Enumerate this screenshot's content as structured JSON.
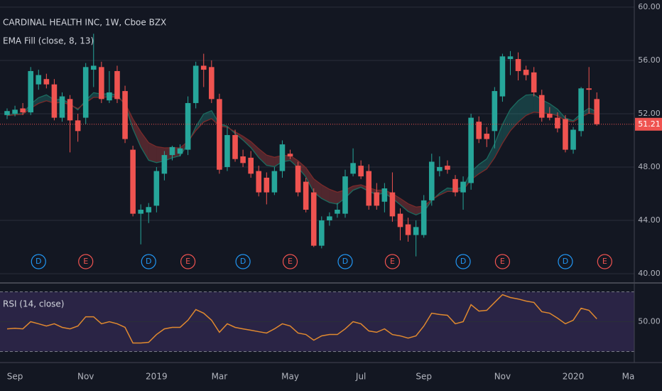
{
  "chart_data": [
    {
      "type": "candlestick",
      "title": "CARDINAL HEALTH INC, 1W, Cboe BZX",
      "categories": [
        null,
        "Sep",
        null,
        null,
        null,
        null,
        null,
        null,
        null,
        null,
        "Nov",
        null,
        null,
        null,
        null,
        null,
        null,
        null,
        null,
        "2019",
        null,
        null,
        null,
        null,
        null,
        null,
        null,
        "Mar",
        null,
        null,
        null,
        null,
        null,
        null,
        null,
        null,
        "May",
        null,
        null,
        null,
        null,
        null,
        null,
        null,
        null,
        "Jul",
        null,
        null,
        null,
        null,
        null,
        null,
        null,
        "Sep",
        null,
        null,
        null,
        null,
        null,
        null,
        null,
        null,
        null,
        "Nov",
        null,
        null,
        null,
        null,
        null,
        null,
        null,
        null,
        "2020",
        null,
        null,
        null,
        null,
        null,
        null,
        "Ma"
      ],
      "open": [
        51.9,
        52.0,
        52.4,
        52.1,
        54.2,
        54.6,
        54.2,
        51.7,
        53.1,
        51.5,
        51.7,
        55.3,
        55.5,
        53.0,
        55.2,
        53.7,
        49.3,
        44.5,
        44.6,
        45.1,
        47.5,
        48.9,
        49.0,
        49.3,
        52.8,
        55.6,
        55.5,
        53.1,
        48.0,
        50.4,
        48.8,
        48.7,
        47.7,
        47.2,
        46.1,
        47.7,
        49.0,
        48.1,
        46.9,
        46.1,
        42.1,
        44.0,
        44.5,
        44.5,
        47.5,
        48.1,
        47.7,
        46.1,
        45.4,
        46.1,
        44.5,
        43.7,
        42.9,
        42.9,
        45.5,
        47.7,
        48.1,
        47.1,
        46.1,
        46.8,
        51.4,
        50.5,
        50.7,
        53.3,
        56.1,
        56.1,
        55.3,
        55.1,
        53.4,
        52.0,
        51.7,
        51.6,
        49.3,
        50.7,
        53.9,
        53.1,
        null,
        null,
        null,
        null
      ],
      "high": [
        52.4,
        52.6,
        52.8,
        55.5,
        55.3,
        55.0,
        54.6,
        53.6,
        53.4,
        52.0,
        55.8,
        58.0,
        55.9,
        55.2,
        55.6,
        54.1,
        49.6,
        45.2,
        45.3,
        48.0,
        49.2,
        49.6,
        49.7,
        53.3,
        55.9,
        56.5,
        56.0,
        53.5,
        51.0,
        50.8,
        49.3,
        49.2,
        48.1,
        47.6,
        48.0,
        50.0,
        49.3,
        48.4,
        47.2,
        46.4,
        44.3,
        44.6,
        45.3,
        47.8,
        49.4,
        48.5,
        48.2,
        46.8,
        46.8,
        47.6,
        44.9,
        44.2,
        44.0,
        45.9,
        49.0,
        48.8,
        48.5,
        47.4,
        47.3,
        52.0,
        51.8,
        51.0,
        54.0,
        56.5,
        56.7,
        56.6,
        55.6,
        55.5,
        53.8,
        52.5,
        52.1,
        51.9,
        51.0,
        54.0,
        55.5,
        53.6,
        null,
        null,
        null,
        null
      ],
      "low": [
        51.6,
        51.8,
        51.9,
        51.9,
        53.8,
        53.9,
        51.5,
        51.4,
        49.1,
        49.9,
        51.2,
        54.0,
        52.8,
        52.8,
        52.8,
        49.8,
        44.3,
        42.2,
        43.8,
        44.6,
        47.0,
        48.5,
        48.8,
        48.9,
        52.4,
        54.0,
        52.8,
        47.5,
        47.7,
        48.4,
        48.0,
        47.2,
        45.8,
        45.2,
        45.9,
        47.2,
        48.6,
        45.8,
        44.6,
        42.0,
        41.9,
        43.6,
        44.2,
        44.2,
        47.3,
        47.1,
        44.8,
        44.8,
        44.6,
        43.9,
        42.5,
        42.4,
        41.3,
        42.7,
        45.1,
        47.3,
        47.5,
        45.8,
        44.8,
        46.3,
        49.8,
        49.5,
        49.4,
        52.9,
        54.9,
        54.5,
        54.5,
        53.3,
        51.4,
        51.5,
        50.6,
        49.1,
        49.0,
        50.3,
        52.0,
        51.1,
        null,
        null,
        null,
        null
      ],
      "close": [
        52.2,
        52.3,
        52.1,
        55.2,
        54.9,
        54.2,
        51.7,
        53.3,
        51.5,
        50.7,
        55.5,
        55.6,
        53.1,
        53.6,
        53.1,
        50.1,
        44.5,
        44.8,
        45.0,
        47.7,
        48.9,
        49.5,
        49.4,
        52.8,
        55.6,
        55.3,
        53.1,
        47.8,
        50.4,
        48.6,
        48.3,
        47.5,
        46.1,
        46.1,
        47.7,
        49.7,
        48.8,
        46.1,
        44.8,
        42.1,
        44.0,
        44.3,
        44.8,
        47.3,
        48.3,
        47.3,
        45.1,
        45.1,
        46.4,
        44.3,
        43.5,
        42.9,
        43.5,
        45.5,
        48.4,
        48.0,
        47.8,
        46.1,
        46.9,
        51.7,
        50.1,
        50.1,
        53.7,
        56.3,
        56.3,
        55.2,
        54.9,
        53.6,
        51.7,
        51.7,
        50.9,
        49.3,
        50.8,
        53.9,
        53.8,
        51.21,
        null,
        null,
        null,
        null
      ],
      "up_color": "#26a69a",
      "down_color": "#ef5350",
      "ylim": [
        39.36,
        60.53
      ],
      "yticks": [
        {
          "value": 40,
          "label": "40.00"
        },
        {
          "value": 44,
          "label": "44.00"
        },
        {
          "value": 48,
          "label": "48.00"
        },
        {
          "value": 52,
          "label": "52.00"
        },
        {
          "value": 56,
          "label": "56.00"
        },
        {
          "value": 60,
          "label": "60.00"
        }
      ],
      "grid": true,
      "last_price": 51.21,
      "events": [
        null,
        null,
        null,
        null,
        "D",
        null,
        null,
        null,
        null,
        null,
        "E",
        null,
        null,
        null,
        null,
        null,
        null,
        null,
        "D",
        null,
        null,
        null,
        null,
        "E",
        null,
        null,
        null,
        null,
        null,
        null,
        "D",
        null,
        null,
        null,
        null,
        null,
        "E",
        null,
        null,
        null,
        null,
        null,
        null,
        "D",
        null,
        null,
        null,
        null,
        null,
        "E",
        null,
        null,
        null,
        null,
        null,
        null,
        null,
        null,
        "D",
        null,
        null,
        null,
        null,
        "E",
        null,
        null,
        null,
        null,
        null,
        null,
        null,
        "D",
        null,
        null,
        null,
        null,
        "E",
        null,
        null,
        null
      ],
      "event_colors": {
        "D": "#2196f3",
        "E": "#ef5350"
      },
      "indicator": {
        "name": "EMA Fill (close, 8, 13)",
        "fast": [
          51.89,
          51.98,
          52.01,
          52.72,
          53.2,
          53.42,
          53.04,
          53.1,
          52.74,
          52.29,
          53.0,
          53.58,
          53.47,
          53.5,
          53.41,
          52.67,
          50.86,
          49.51,
          48.51,
          48.33,
          48.46,
          48.69,
          48.85,
          49.73,
          51.03,
          51.98,
          52.23,
          51.25,
          51.06,
          50.51,
          50.02,
          49.46,
          48.71,
          48.13,
          48.03,
          48.4,
          48.49,
          47.96,
          47.26,
          46.11,
          45.64,
          45.34,
          45.22,
          45.68,
          46.26,
          46.49,
          46.18,
          45.94,
          46.04,
          45.65,
          45.17,
          44.67,
          44.41,
          44.65,
          45.48,
          46.04,
          46.43,
          46.36,
          46.48,
          47.64,
          48.19,
          48.61,
          49.74,
          51.2,
          52.33,
          52.97,
          53.4,
          53.44,
          53.05,
          52.75,
          52.34,
          51.67,
          51.48,
          52.02,
          52.42,
          52.15,
          null,
          null,
          null,
          null
        ],
        "slow": [
          51.86,
          51.92,
          51.95,
          52.41,
          52.77,
          52.97,
          52.79,
          52.86,
          52.67,
          52.39,
          52.83,
          53.23,
          53.21,
          53.27,
          53.25,
          52.8,
          51.61,
          50.64,
          49.83,
          49.53,
          49.44,
          49.45,
          49.44,
          49.92,
          50.73,
          51.38,
          51.63,
          51.08,
          50.98,
          50.64,
          50.31,
          49.91,
          49.37,
          48.9,
          48.73,
          48.87,
          48.86,
          48.47,
          47.95,
          47.11,
          46.67,
          46.33,
          46.11,
          46.28,
          46.57,
          46.67,
          46.45,
          46.26,
          46.28,
          46.0,
          45.64,
          45.25,
          45.0,
          45.07,
          45.55,
          45.9,
          46.17,
          46.16,
          46.27,
          47.05,
          47.49,
          47.86,
          48.7,
          49.79,
          50.72,
          51.36,
          51.87,
          52.12,
          52.06,
          52.01,
          51.85,
          51.49,
          51.39,
          51.75,
          52.04,
          51.92,
          null,
          null,
          null,
          null
        ],
        "fast_color": "#1b6b5f",
        "slow_color": "#7a2a2a",
        "up_fill": "rgba(38,166,154,0.28)",
        "down_fill": "rgba(239,83,80,0.28)"
      }
    },
    {
      "type": "line",
      "title": "RSI (14, close)",
      "values": [
        45.2,
        45.6,
        45.2,
        50,
        48.6,
        47.1,
        48.6,
        46.2,
        45.2,
        47.1,
        53.3,
        53.3,
        48.6,
        50,
        48.6,
        46.2,
        35.7,
        35.7,
        36.2,
        41.4,
        45.2,
        46.2,
        46.2,
        51,
        58.1,
        55.7,
        51,
        42.9,
        48.6,
        46.2,
        45.2,
        44.3,
        43.3,
        42.4,
        45.2,
        48.6,
        47.1,
        42.4,
        41.4,
        37.6,
        40.5,
        41.4,
        41.4,
        45.2,
        50,
        48.6,
        43.8,
        42.9,
        45.2,
        41.4,
        40.5,
        39,
        40.5,
        47.1,
        55.7,
        54.8,
        54.3,
        48.6,
        50,
        61.4,
        57.1,
        57.6,
        62.9,
        68.1,
        66.2,
        65.2,
        63.8,
        62.9,
        56.7,
        55.7,
        52.4,
        48.6,
        51,
        59,
        57.6,
        51.9,
        null,
        null,
        null,
        null
      ],
      "color": "#e0892f",
      "ylim": [
        25,
        75
      ],
      "yticks": [
        {
          "value": 50,
          "label": "50.00"
        }
      ],
      "bands": [
        30,
        70
      ],
      "band_color": "rgba(126,87,194,0.22)"
    }
  ]
}
